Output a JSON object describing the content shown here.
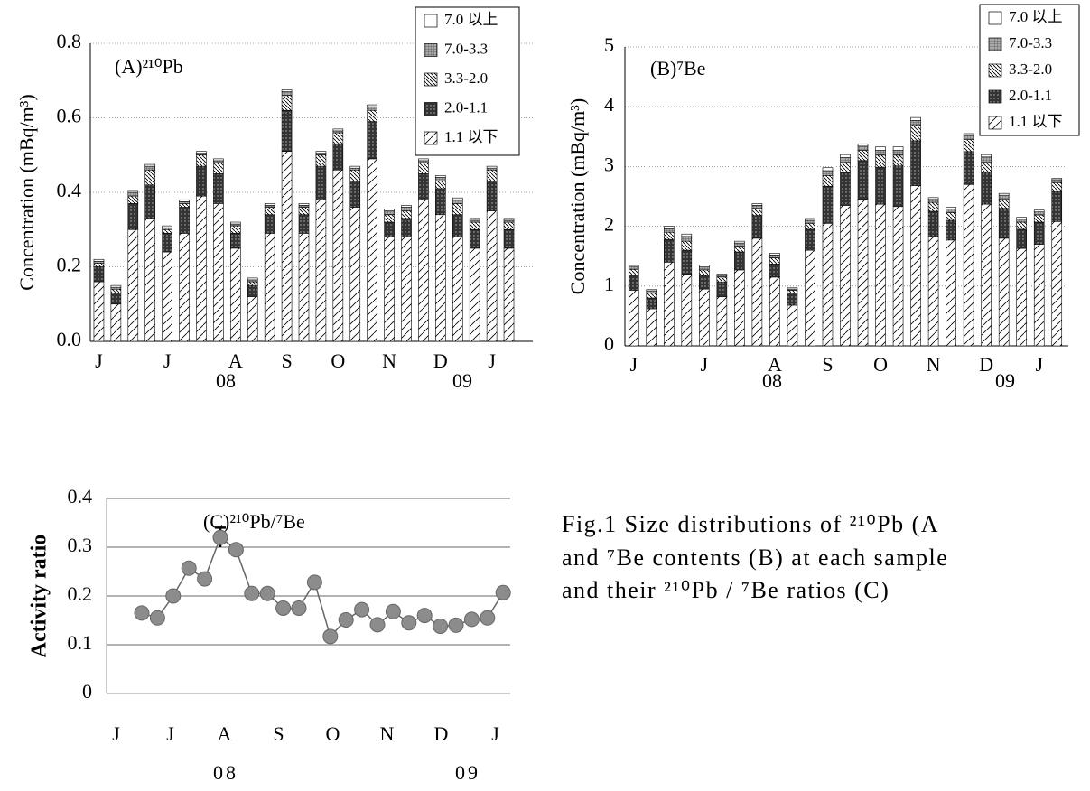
{
  "chart_data": [
    {
      "type": "bar",
      "stacked": true,
      "title": "(A)²¹⁰Pb",
      "y_label": "Concentration (mBq/m³)",
      "categories": [
        "J",
        null,
        null,
        null,
        "J",
        null,
        null,
        null,
        "A",
        null,
        null,
        "S",
        null,
        null,
        "O",
        null,
        null,
        "N",
        null,
        null,
        "D",
        null,
        null,
        "J",
        null
      ],
      "x_group_labels": [
        "08",
        "09"
      ],
      "ylim": [
        0,
        0.8
      ],
      "yticks": [
        {
          "value": 0,
          "label": "0.0"
        },
        0.2,
        0.4,
        0.6,
        0.8
      ],
      "grid": true,
      "legend": "upper right",
      "series": [
        {
          "name": "1.1 以下",
          "color": "#ffffff",
          "pattern": "diagonal",
          "values": [
            0.16,
            0.1,
            0.3,
            0.33,
            0.24,
            0.29,
            0.39,
            0.37,
            0.25,
            0.12,
            0.29,
            0.51,
            0.29,
            0.38,
            0.46,
            0.36,
            0.49,
            0.28,
            0.28,
            0.38,
            0.34,
            0.28,
            0.25,
            0.35,
            0.25
          ]
        },
        {
          "name": "2.0-1.1",
          "color": "#333333",
          "pattern": "dots",
          "values": [
            0.04,
            0.03,
            0.07,
            0.09,
            0.05,
            0.07,
            0.08,
            0.08,
            0.04,
            0.03,
            0.05,
            0.11,
            0.05,
            0.09,
            0.07,
            0.07,
            0.1,
            0.04,
            0.05,
            0.07,
            0.07,
            0.06,
            0.05,
            0.08,
            0.05
          ]
        },
        {
          "name": "3.3-2.0",
          "color": "#ffffff",
          "pattern": "back-diagonal",
          "values": [
            0.01,
            0.01,
            0.02,
            0.04,
            0.01,
            0.01,
            0.03,
            0.03,
            0.02,
            0.01,
            0.02,
            0.04,
            0.02,
            0.03,
            0.03,
            0.03,
            0.03,
            0.02,
            0.02,
            0.03,
            0.02,
            0.03,
            0.02,
            0.03,
            0.02
          ]
        },
        {
          "name": "7.0-3.3",
          "color": "#aaaaaa",
          "pattern": "cross",
          "values": [
            0.005,
            0.005,
            0.01,
            0.01,
            0.005,
            0.005,
            0.005,
            0.005,
            0.005,
            0.005,
            0.005,
            0.01,
            0.005,
            0.005,
            0.005,
            0.005,
            0.01,
            0.01,
            0.01,
            0.005,
            0.01,
            0.01,
            0.005,
            0.005,
            0.005
          ]
        },
        {
          "name": "7.0 以上",
          "color": "#ffffff",
          "pattern": "none",
          "values": [
            0.005,
            0.005,
            0.005,
            0.005,
            0.005,
            0.005,
            0.005,
            0.005,
            0.005,
            0.005,
            0.005,
            0.005,
            0.005,
            0.005,
            0.005,
            0.005,
            0.005,
            0.005,
            0.005,
            0.005,
            0.005,
            0.005,
            0.005,
            0.005,
            0.005
          ]
        }
      ]
    },
    {
      "type": "bar",
      "stacked": true,
      "title": "(B)⁷Be",
      "y_label": "Concentration (mBq/m³)",
      "categories": [
        "J",
        null,
        null,
        null,
        "J",
        null,
        null,
        null,
        "A",
        null,
        null,
        "S",
        null,
        null,
        "O",
        null,
        null,
        "N",
        null,
        null,
        "D",
        null,
        null,
        "J",
        null
      ],
      "x_group_labels": [
        "08",
        "09"
      ],
      "ylim": [
        0,
        5
      ],
      "yticks": [
        0,
        1,
        2,
        3,
        4,
        5
      ],
      "grid": true,
      "legend": "upper right",
      "series": [
        {
          "name": "1.1 以下",
          "color": "#ffffff",
          "pattern": "diagonal",
          "values": [
            0.93,
            0.62,
            1.4,
            1.2,
            0.95,
            0.82,
            1.27,
            1.8,
            1.15,
            0.68,
            1.6,
            2.05,
            2.35,
            2.45,
            2.37,
            2.33,
            2.68,
            1.83,
            1.77,
            2.7,
            2.37,
            1.8,
            1.63,
            1.7,
            2.08
          ]
        },
        {
          "name": "2.0-1.1",
          "color": "#333333",
          "pattern": "dots",
          "values": [
            0.25,
            0.18,
            0.38,
            0.4,
            0.22,
            0.25,
            0.3,
            0.38,
            0.22,
            0.2,
            0.35,
            0.62,
            0.55,
            0.65,
            0.62,
            0.68,
            0.75,
            0.42,
            0.33,
            0.55,
            0.52,
            0.5,
            0.32,
            0.37,
            0.5
          ]
        },
        {
          "name": "3.3-2.0",
          "color": "#ffffff",
          "pattern": "back-diagonal",
          "values": [
            0.1,
            0.08,
            0.12,
            0.15,
            0.1,
            0.08,
            0.1,
            0.12,
            0.1,
            0.05,
            0.1,
            0.18,
            0.17,
            0.17,
            0.2,
            0.18,
            0.27,
            0.15,
            0.13,
            0.2,
            0.18,
            0.15,
            0.12,
            0.12,
            0.15
          ]
        },
        {
          "name": "7.0-3.3",
          "color": "#aaaaaa",
          "pattern": "cross",
          "values": [
            0.05,
            0.04,
            0.06,
            0.08,
            0.05,
            0.03,
            0.05,
            0.05,
            0.05,
            0.02,
            0.05,
            0.08,
            0.08,
            0.07,
            0.08,
            0.08,
            0.07,
            0.05,
            0.06,
            0.07,
            0.09,
            0.07,
            0.05,
            0.05,
            0.05
          ]
        },
        {
          "name": "7.0 以上",
          "color": "#ffffff",
          "pattern": "none",
          "values": [
            0.02,
            0.02,
            0.04,
            0.04,
            0.03,
            0.02,
            0.03,
            0.03,
            0.03,
            0.02,
            0.03,
            0.05,
            0.05,
            0.04,
            0.06,
            0.06,
            0.05,
            0.03,
            0.03,
            0.03,
            0.04,
            0.03,
            0.03,
            0.03,
            0.02
          ]
        }
      ]
    },
    {
      "type": "line",
      "title": "(C)²¹⁰Pb/⁷Be",
      "y_label": "Activity ratio",
      "x": [
        0.45,
        0.74,
        1.03,
        1.32,
        1.61,
        1.9,
        2.19,
        2.48,
        2.77,
        3.06,
        3.35,
        3.64,
        3.93,
        4.22,
        4.51,
        4.8,
        5.09,
        5.38,
        5.67,
        5.96,
        6.25,
        6.54,
        6.83,
        7.12
      ],
      "values": [
        0.165,
        0.155,
        0.2,
        0.257,
        0.235,
        0.32,
        0.295,
        0.205,
        0.205,
        0.175,
        0.175,
        0.228,
        0.117,
        0.151,
        0.172,
        0.141,
        0.168,
        0.145,
        0.16,
        0.138,
        0.14,
        0.152,
        0.155,
        0.207
      ],
      "errors": [
        null,
        null,
        null,
        null,
        null,
        0.02,
        null,
        null,
        null,
        null,
        null,
        null,
        null,
        null,
        null,
        null,
        null,
        null,
        null,
        null,
        null,
        null,
        null,
        null
      ],
      "color": "#8c8c8c",
      "xlim": [
        -0.2,
        7.25
      ],
      "xticks": [
        {
          "value": 0,
          "label": "J"
        },
        {
          "value": 1,
          "label": "J"
        },
        {
          "value": 2,
          "label": "A"
        },
        {
          "value": 3,
          "label": "S"
        },
        {
          "value": 4,
          "label": "O"
        },
        {
          "value": 5,
          "label": "N"
        },
        {
          "value": 6,
          "label": "D"
        },
        {
          "value": 7,
          "label": "J"
        }
      ],
      "x_group_labels": [
        "08",
        "09"
      ],
      "ylim": [
        0,
        0.4
      ],
      "yticks": [
        0,
        0.1,
        0.2,
        0.3,
        0.4
      ],
      "grid": true
    }
  ],
  "caption_lines": [
    "Fig.1 Size distributions of ²¹⁰Pb (A",
    "and ⁷Be contents (B) at each sample",
    "and their ²¹⁰Pb / ⁷Be ratios (C)"
  ]
}
